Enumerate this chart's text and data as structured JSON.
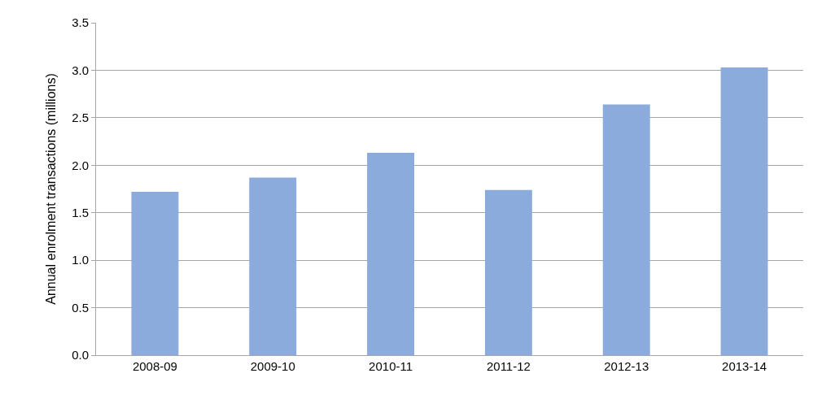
{
  "chart_data": {
    "type": "bar",
    "ylabel": "Annual enrolment transactions (millions)",
    "categories": [
      "2008-09",
      "2009-10",
      "2010-11",
      "2011-12",
      "2012-13",
      "2013-14"
    ],
    "values": [
      1.72,
      1.87,
      2.13,
      1.74,
      2.64,
      3.03
    ],
    "color": "#8aabdb",
    "ylim": [
      0,
      3.5
    ],
    "yticks": [
      {
        "value": 0,
        "label": "0.0"
      },
      {
        "value": 0.5,
        "label": "0.5"
      },
      {
        "value": 1,
        "label": "1.0"
      },
      {
        "value": 1.5,
        "label": "1.5"
      },
      {
        "value": 2,
        "label": "2.0"
      },
      {
        "value": 2.5,
        "label": "2.5"
      },
      {
        "value": 3,
        "label": "3.0"
      },
      {
        "value": 3.5,
        "label": "3.5"
      }
    ],
    "grid": "y",
    "legend": false
  }
}
